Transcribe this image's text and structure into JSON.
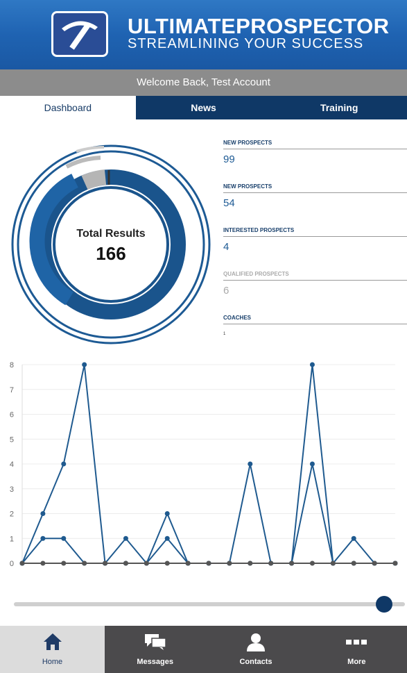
{
  "brand": {
    "title": "ULTIMATEPROSPECTOR",
    "tagline": "STREAMLINING YOUR SUCCESS"
  },
  "welcome": "Welcome Back, Test Account",
  "tabs": [
    {
      "label": "Dashboard",
      "active": true
    },
    {
      "label": "News",
      "active": false
    },
    {
      "label": "Training",
      "active": false
    }
  ],
  "donut": {
    "label": "Total Results",
    "value": "166"
  },
  "stats": [
    {
      "label": "NEW PROSPECTS",
      "value": "99"
    },
    {
      "label": "NEW PROSPECTS",
      "value": "54"
    },
    {
      "label": "INTERESTED PROSPECTS",
      "value": "4"
    },
    {
      "label": "QUALIFIED PROSPECTS",
      "value": "6"
    },
    {
      "label": "COACHES",
      "value": "1"
    }
  ],
  "chart_data": {
    "type": "line",
    "x": [
      1,
      2,
      3,
      4,
      5,
      6,
      7,
      8,
      9,
      10,
      11,
      12,
      13,
      14,
      15,
      16,
      17,
      18,
      19
    ],
    "ylim": [
      0,
      8
    ],
    "yticks": [
      "0",
      "1",
      "2",
      "3",
      "4",
      "5",
      "6",
      "7",
      "8"
    ],
    "grid": true,
    "series": [
      {
        "values": [
          0,
          2,
          4,
          8,
          0,
          1,
          0,
          2,
          0,
          0,
          0,
          4,
          0,
          0,
          8,
          0,
          1,
          0,
          0
        ],
        "color": "#1f5a8f"
      },
      {
        "values": [
          0,
          1,
          1,
          0,
          0,
          0,
          0,
          1,
          0,
          0,
          0,
          0,
          0,
          0,
          4,
          0,
          0,
          0,
          0
        ],
        "color": "#1f5a8f"
      },
      {
        "values": [
          0,
          0,
          0,
          0,
          0,
          0,
          0,
          0,
          0,
          0,
          0,
          0,
          0,
          0,
          0,
          0,
          0,
          0,
          0
        ],
        "color": "#555555"
      }
    ]
  },
  "slider": {
    "value": 1.0
  },
  "nav": [
    {
      "label": "Home",
      "icon": "home-icon",
      "active": true
    },
    {
      "label": "Messages",
      "icon": "messages-icon",
      "active": false
    },
    {
      "label": "Contacts",
      "icon": "contacts-icon",
      "active": false
    },
    {
      "label": "More",
      "icon": "more-icon",
      "active": false
    }
  ],
  "colors": {
    "header": "#1f63b2",
    "navy": "#0f3866",
    "accent": "#1d5a94",
    "grey_bar": "#8c8c8c"
  }
}
